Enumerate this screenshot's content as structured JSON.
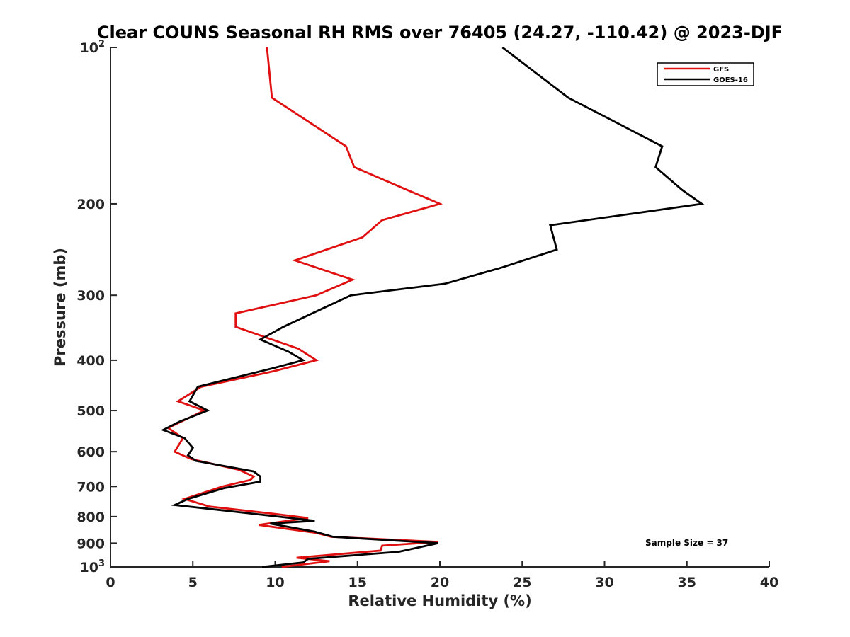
{
  "chart_data": {
    "type": "line",
    "title": "Clear COUNS Seasonal RH RMS over 76405 (24.27, -110.42) @ 2023-DJF",
    "xlabel": "Relative Humidity (%)",
    "ylabel": "Pressure (mb)",
    "xlim": [
      0,
      40
    ],
    "ylim": [
      100,
      1000
    ],
    "yscale": "log",
    "y_reversed": true,
    "x_ticks": [
      0,
      5,
      10,
      15,
      20,
      25,
      30,
      35,
      40
    ],
    "y_ticks": [
      {
        "value": 100,
        "label": "10",
        "sup": "2"
      },
      {
        "value": 200,
        "label": "200",
        "sup": ""
      },
      {
        "value": 300,
        "label": "300",
        "sup": ""
      },
      {
        "value": 400,
        "label": "400",
        "sup": ""
      },
      {
        "value": 500,
        "label": "500",
        "sup": ""
      },
      {
        "value": 600,
        "label": "600",
        "sup": ""
      },
      {
        "value": 700,
        "label": "700",
        "sup": ""
      },
      {
        "value": 800,
        "label": "800",
        "sup": ""
      },
      {
        "value": 900,
        "label": "900",
        "sup": ""
      },
      {
        "value": 1000,
        "label": "10",
        "sup": "3"
      }
    ],
    "grid": false,
    "legend_position": "top-right",
    "annotation": "Sample Size = 37",
    "series": [
      {
        "name": "GFS",
        "color": "#e01010",
        "points": [
          [
            9.5,
            100
          ],
          [
            9.8,
            125
          ],
          [
            14.3,
            155
          ],
          [
            14.8,
            170
          ],
          [
            18.0,
            188
          ],
          [
            20.0,
            200
          ],
          [
            16.5,
            215
          ],
          [
            15.3,
            232
          ],
          [
            11.2,
            257
          ],
          [
            14.7,
            280
          ],
          [
            12.5,
            300
          ],
          [
            7.6,
            325
          ],
          [
            7.6,
            345
          ],
          [
            11.4,
            380
          ],
          [
            12.5,
            400
          ],
          [
            9.9,
            420
          ],
          [
            5.5,
            450
          ],
          [
            4.1,
            480
          ],
          [
            5.7,
            500
          ],
          [
            3.5,
            540
          ],
          [
            4.4,
            565
          ],
          [
            3.9,
            600
          ],
          [
            4.9,
            620
          ],
          [
            7.8,
            650
          ],
          [
            8.7,
            670
          ],
          [
            8.5,
            680
          ],
          [
            6.8,
            700
          ],
          [
            4.5,
            740
          ],
          [
            6.0,
            765
          ],
          [
            9.9,
            790
          ],
          [
            12.0,
            805
          ],
          [
            9.0,
            830
          ],
          [
            12.5,
            860
          ],
          [
            13.4,
            875
          ],
          [
            19.9,
            895
          ],
          [
            16.5,
            910
          ],
          [
            16.4,
            930
          ],
          [
            11.3,
            960
          ],
          [
            13.3,
            975
          ],
          [
            10.4,
            1000
          ]
        ]
      },
      {
        "name": "GOES-16",
        "color": "#000000",
        "points": [
          [
            23.8,
            100
          ],
          [
            27.8,
            125
          ],
          [
            33.5,
            155
          ],
          [
            33.1,
            170
          ],
          [
            34.7,
            188
          ],
          [
            35.9,
            200
          ],
          [
            26.7,
            220
          ],
          [
            27.1,
            245
          ],
          [
            23.8,
            265
          ],
          [
            20.3,
            285
          ],
          [
            14.6,
            300
          ],
          [
            12.7,
            320
          ],
          [
            10.5,
            345
          ],
          [
            9.1,
            365
          ],
          [
            10.8,
            385
          ],
          [
            11.7,
            400
          ],
          [
            9.8,
            415
          ],
          [
            5.3,
            450
          ],
          [
            4.8,
            480
          ],
          [
            5.9,
            500
          ],
          [
            4.2,
            525
          ],
          [
            3.2,
            545
          ],
          [
            4.5,
            565
          ],
          [
            5.0,
            590
          ],
          [
            4.7,
            610
          ],
          [
            5.2,
            625
          ],
          [
            8.7,
            655
          ],
          [
            9.1,
            670
          ],
          [
            9.1,
            685
          ],
          [
            6.9,
            705
          ],
          [
            4.7,
            740
          ],
          [
            3.9,
            760
          ],
          [
            6.3,
            775
          ],
          [
            10.2,
            800
          ],
          [
            12.4,
            815
          ],
          [
            9.7,
            825
          ],
          [
            12.4,
            855
          ],
          [
            13.5,
            875
          ],
          [
            19.9,
            900
          ],
          [
            17.5,
            935
          ],
          [
            12.0,
            965
          ],
          [
            11.7,
            980
          ],
          [
            9.2,
            1000
          ]
        ]
      }
    ]
  }
}
